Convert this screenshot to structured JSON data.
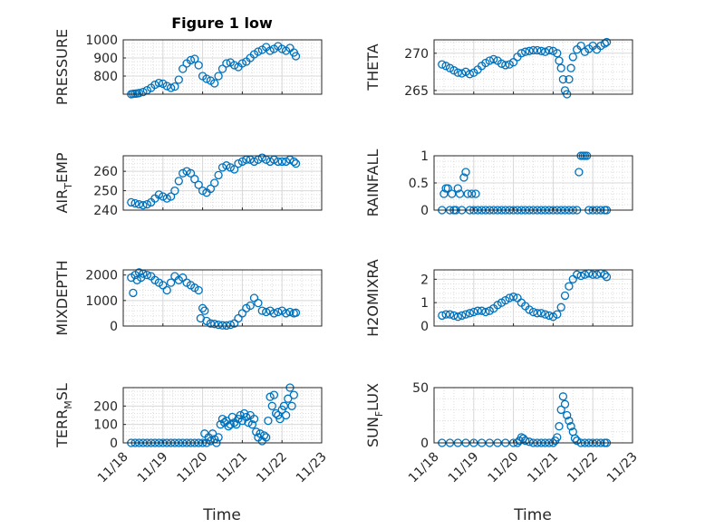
{
  "figure": {
    "title": "Figure 1 low",
    "xlabel_left": "Time",
    "xlabel_right": "Time"
  },
  "style": {
    "marker_color": "#0072BD",
    "axis_color": "#262626",
    "grid_color": "#dddddd"
  },
  "chart_data": [
    {
      "type": "scatter",
      "ylabel": "PRESSURE",
      "column": "left",
      "ylim": [
        700,
        1000
      ],
      "yticks": [
        800,
        900,
        1000
      ],
      "xlim": [
        18,
        23
      ],
      "xticks": [
        18,
        19,
        20,
        21,
        22,
        23
      ],
      "xticklabels": [
        "11/18",
        "11/19",
        "11/20",
        "11/21",
        "11/22",
        "11/23"
      ],
      "x": [
        18.2,
        18.25,
        18.3,
        18.35,
        18.4,
        18.5,
        18.6,
        18.7,
        18.8,
        18.9,
        19.0,
        19.1,
        19.2,
        19.3,
        19.4,
        19.5,
        19.6,
        19.7,
        19.8,
        19.9,
        20.0,
        20.1,
        20.2,
        20.3,
        20.4,
        20.5,
        20.6,
        20.7,
        20.8,
        20.9,
        21.0,
        21.1,
        21.2,
        21.3,
        21.4,
        21.5,
        21.6,
        21.7,
        21.8,
        21.9,
        22.0,
        22.1,
        22.2,
        22.3,
        22.35
      ],
      "y": [
        700,
        702,
        703,
        704,
        706,
        712,
        722,
        735,
        752,
        762,
        758,
        745,
        735,
        742,
        780,
        840,
        870,
        888,
        895,
        860,
        800,
        785,
        775,
        760,
        800,
        840,
        870,
        875,
        860,
        850,
        870,
        880,
        900,
        920,
        935,
        945,
        960,
        940,
        950,
        965,
        950,
        940,
        955,
        930,
        910
      ]
    },
    {
      "type": "scatter",
      "ylabel": "THETA",
      "column": "right",
      "ylim": [
        264.5,
        271.8
      ],
      "yticks": [
        265,
        270
      ],
      "xlim": [
        18,
        23
      ],
      "xticks": [
        18,
        19,
        20,
        21,
        22,
        23
      ],
      "xticklabels": [
        "11/18",
        "11/19",
        "11/20",
        "11/21",
        "11/22",
        "11/23"
      ],
      "x": [
        18.2,
        18.3,
        18.4,
        18.5,
        18.6,
        18.7,
        18.8,
        18.9,
        19.0,
        19.1,
        19.2,
        19.3,
        19.4,
        19.5,
        19.6,
        19.7,
        19.8,
        19.9,
        20.0,
        20.1,
        20.2,
        20.3,
        20.4,
        20.5,
        20.6,
        20.7,
        20.8,
        20.9,
        21.0,
        21.1,
        21.15,
        21.2,
        21.25,
        21.3,
        21.35,
        21.4,
        21.45,
        21.5,
        21.6,
        21.7,
        21.8,
        21.9,
        22.0,
        22.1,
        22.2,
        22.3,
        22.35
      ],
      "y": [
        268.5,
        268.3,
        268.0,
        267.7,
        267.4,
        267.3,
        267.5,
        267.2,
        267.4,
        267.8,
        268.3,
        268.7,
        269.0,
        269.2,
        269.0,
        268.6,
        268.4,
        268.5,
        268.8,
        269.5,
        270.0,
        270.2,
        270.3,
        270.4,
        270.4,
        270.3,
        270.2,
        270.4,
        270.3,
        270.0,
        269.0,
        268.0,
        266.5,
        265.0,
        264.5,
        266.5,
        268.0,
        269.5,
        270.5,
        271.0,
        270.2,
        270.6,
        271.0,
        270.5,
        271.0,
        271.3,
        271.5
      ]
    },
    {
      "type": "scatter",
      "ylabel": "AIR_TEMP",
      "ylabel_main": "AIR",
      "ylabel_sub": "T",
      "ylabel_rest": "EMP",
      "column": "left",
      "ylim": [
        240,
        268
      ],
      "yticks": [
        240,
        250,
        260
      ],
      "xlim": [
        18,
        23
      ],
      "xticks": [
        18,
        19,
        20,
        21,
        22,
        23
      ],
      "xticklabels": [
        "11/18",
        "11/19",
        "11/20",
        "11/21",
        "11/22",
        "11/23"
      ],
      "x": [
        18.2,
        18.3,
        18.4,
        18.5,
        18.6,
        18.7,
        18.8,
        18.9,
        19.0,
        19.1,
        19.2,
        19.3,
        19.4,
        19.5,
        19.6,
        19.7,
        19.8,
        19.9,
        20.0,
        20.1,
        20.2,
        20.3,
        20.4,
        20.5,
        20.6,
        20.7,
        20.8,
        20.9,
        21.0,
        21.1,
        21.2,
        21.3,
        21.4,
        21.5,
        21.6,
        21.7,
        21.8,
        21.9,
        22.0,
        22.1,
        22.2,
        22.3,
        22.35
      ],
      "y": [
        244,
        243.5,
        243,
        242.5,
        243,
        244,
        246,
        248,
        247,
        246,
        247,
        250,
        255,
        259,
        260,
        259,
        256,
        253,
        250,
        249,
        251,
        254,
        258,
        262,
        263,
        262,
        261,
        264,
        265,
        266,
        266,
        265,
        266,
        267,
        266,
        265,
        266,
        265,
        265,
        265,
        266,
        265,
        264
      ]
    },
    {
      "type": "scatter",
      "ylabel": "RAINFALL",
      "column": "right",
      "ylim": [
        0,
        1
      ],
      "yticks": [
        0,
        0.5,
        1
      ],
      "xlim": [
        18,
        23
      ],
      "xticks": [
        18,
        19,
        20,
        21,
        22,
        23
      ],
      "xticklabels": [
        "11/18",
        "11/19",
        "11/20",
        "11/21",
        "11/22",
        "11/23"
      ],
      "x": [
        18.2,
        18.25,
        18.3,
        18.35,
        18.4,
        18.45,
        18.5,
        18.55,
        18.6,
        18.65,
        18.7,
        18.75,
        18.8,
        18.85,
        18.9,
        18.95,
        19.0,
        19.05,
        19.1,
        19.2,
        19.3,
        19.4,
        19.5,
        19.6,
        19.7,
        19.8,
        19.9,
        20.0,
        20.1,
        20.2,
        20.3,
        20.4,
        20.5,
        20.6,
        20.7,
        20.8,
        20.9,
        21.0,
        21.1,
        21.2,
        21.3,
        21.4,
        21.5,
        21.6,
        21.65,
        21.7,
        21.75,
        21.8,
        21.85,
        21.9,
        22.0,
        22.1,
        22.2,
        22.3,
        22.35
      ],
      "y": [
        0.0,
        0.3,
        0.4,
        0.4,
        0.0,
        0.3,
        0.0,
        0.0,
        0.4,
        0.3,
        0.0,
        0.6,
        0.7,
        0.3,
        0.0,
        0.3,
        0.0,
        0.3,
        0.0,
        0.0,
        0.0,
        0.0,
        0.0,
        0.0,
        0.0,
        0.0,
        0.0,
        0.0,
        0.0,
        0.0,
        0.0,
        0.0,
        0.0,
        0.0,
        0.0,
        0.0,
        0.0,
        0.0,
        0.0,
        0.0,
        0.0,
        0.0,
        0.0,
        0.0,
        0.7,
        1.0,
        1.0,
        1.0,
        1.0,
        0.0,
        0.0,
        0.0,
        0.0,
        0.0,
        0.0
      ]
    },
    {
      "type": "scatter",
      "ylabel": "MIXDEPTH",
      "column": "left",
      "ylim": [
        0,
        2200
      ],
      "yticks": [
        0,
        1000,
        2000
      ],
      "xlim": [
        18,
        23
      ],
      "xticks": [
        18,
        19,
        20,
        21,
        22,
        23
      ],
      "xticklabels": [
        "11/18",
        "11/19",
        "11/20",
        "11/21",
        "11/22",
        "11/23"
      ],
      "x": [
        18.2,
        18.25,
        18.3,
        18.35,
        18.4,
        18.45,
        18.5,
        18.6,
        18.7,
        18.8,
        18.9,
        19.0,
        19.1,
        19.2,
        19.3,
        19.4,
        19.5,
        19.6,
        19.7,
        19.8,
        19.9,
        19.95,
        20.0,
        20.05,
        20.1,
        20.2,
        20.3,
        20.4,
        20.5,
        20.6,
        20.7,
        20.8,
        20.9,
        21.0,
        21.1,
        21.2,
        21.3,
        21.4,
        21.5,
        21.6,
        21.7,
        21.8,
        21.9,
        22.0,
        22.1,
        22.2,
        22.3,
        22.35
      ],
      "y": [
        1900,
        1300,
        2000,
        1800,
        2100,
        1900,
        2050,
        2000,
        1950,
        1800,
        1700,
        1600,
        1400,
        1700,
        1950,
        1800,
        1900,
        1700,
        1600,
        1500,
        1400,
        300,
        700,
        600,
        200,
        100,
        80,
        50,
        30,
        20,
        50,
        100,
        300,
        500,
        700,
        800,
        1100,
        900,
        600,
        550,
        600,
        500,
        550,
        600,
        500,
        550,
        500,
        520
      ]
    },
    {
      "type": "scatter",
      "ylabel": "H2OMIXRA",
      "column": "right",
      "ylim": [
        0,
        2.4
      ],
      "yticks": [
        0,
        1,
        2
      ],
      "xlim": [
        18,
        23
      ],
      "xticks": [
        18,
        19,
        20,
        21,
        22,
        23
      ],
      "xticklabels": [
        "11/18",
        "11/19",
        "11/20",
        "11/21",
        "11/22",
        "11/23"
      ],
      "x": [
        18.2,
        18.3,
        18.4,
        18.5,
        18.6,
        18.7,
        18.8,
        18.9,
        19.0,
        19.1,
        19.2,
        19.3,
        19.4,
        19.5,
        19.6,
        19.7,
        19.8,
        19.9,
        20.0,
        20.1,
        20.2,
        20.3,
        20.4,
        20.5,
        20.6,
        20.7,
        20.8,
        20.9,
        21.0,
        21.1,
        21.2,
        21.3,
        21.4,
        21.5,
        21.6,
        21.7,
        21.8,
        21.9,
        22.0,
        22.1,
        22.2,
        22.3,
        22.35
      ],
      "y": [
        0.45,
        0.5,
        0.5,
        0.45,
        0.4,
        0.45,
        0.5,
        0.55,
        0.6,
        0.65,
        0.65,
        0.6,
        0.65,
        0.75,
        0.9,
        1.0,
        1.1,
        1.2,
        1.25,
        1.2,
        1.0,
        0.85,
        0.7,
        0.6,
        0.55,
        0.55,
        0.5,
        0.45,
        0.4,
        0.5,
        0.8,
        1.3,
        1.7,
        2.0,
        2.2,
        2.15,
        2.2,
        2.25,
        2.2,
        2.2,
        2.25,
        2.2,
        2.1
      ]
    },
    {
      "type": "scatter",
      "ylabel": "TERR_MSL",
      "ylabel_main": "TERR",
      "ylabel_sub": "M",
      "ylabel_rest": "SL",
      "column": "left",
      "ylim": [
        0,
        300
      ],
      "yticks": [
        0,
        100,
        200
      ],
      "xlim": [
        18,
        23
      ],
      "xticks": [
        18,
        19,
        20,
        21,
        22,
        23
      ],
      "xticklabels": [
        "11/18",
        "11/19",
        "11/20",
        "11/21",
        "11/22",
        "11/23"
      ],
      "x": [
        18.2,
        18.3,
        18.4,
        18.5,
        18.6,
        18.7,
        18.8,
        18.9,
        19.0,
        19.1,
        19.2,
        19.3,
        19.4,
        19.5,
        19.6,
        19.7,
        19.8,
        19.9,
        20.0,
        20.05,
        20.1,
        20.15,
        20.2,
        20.25,
        20.3,
        20.35,
        20.4,
        20.45,
        20.5,
        20.55,
        20.6,
        20.65,
        20.7,
        20.75,
        20.8,
        20.85,
        20.9,
        20.95,
        21.0,
        21.05,
        21.1,
        21.15,
        21.2,
        21.25,
        21.3,
        21.35,
        21.4,
        21.45,
        21.5,
        21.55,
        21.6,
        21.65,
        21.7,
        21.75,
        21.8,
        21.85,
        21.9,
        21.95,
        22.0,
        22.05,
        22.1,
        22.15,
        22.2,
        22.25,
        22.3
      ],
      "y": [
        0,
        0,
        0,
        0,
        0,
        0,
        0,
        0,
        0,
        0,
        0,
        0,
        0,
        0,
        0,
        0,
        0,
        0,
        0,
        50,
        0,
        30,
        10,
        50,
        20,
        0,
        30,
        100,
        130,
        110,
        120,
        90,
        100,
        140,
        110,
        100,
        130,
        150,
        120,
        160,
        140,
        110,
        150,
        100,
        130,
        60,
        30,
        50,
        10,
        40,
        30,
        120,
        250,
        200,
        260,
        160,
        150,
        130,
        180,
        200,
        150,
        240,
        300,
        200,
        260
      ]
    },
    {
      "type": "scatter",
      "ylabel": "SUN_FLUX",
      "ylabel_main": "SUN",
      "ylabel_sub": "F",
      "ylabel_rest": "LUX",
      "column": "right",
      "ylim": [
        0,
        50
      ],
      "yticks": [
        0,
        50
      ],
      "xlim": [
        18,
        23
      ],
      "xticks": [
        18,
        19,
        20,
        21,
        22,
        23
      ],
      "xticklabels": [
        "11/18",
        "11/19",
        "11/20",
        "11/21",
        "11/22",
        "11/23"
      ],
      "x": [
        18.2,
        18.4,
        18.6,
        18.8,
        19.0,
        19.2,
        19.4,
        19.6,
        19.8,
        20.0,
        20.1,
        20.15,
        20.2,
        20.25,
        20.3,
        20.4,
        20.5,
        20.6,
        20.7,
        20.8,
        20.9,
        21.0,
        21.05,
        21.1,
        21.15,
        21.2,
        21.25,
        21.3,
        21.35,
        21.4,
        21.45,
        21.5,
        21.55,
        21.6,
        21.7,
        21.8,
        21.9,
        22.0,
        22.1,
        22.2,
        22.3,
        22.35
      ],
      "y": [
        0,
        0,
        0,
        0,
        0,
        0,
        0,
        0,
        0,
        0,
        0,
        2,
        5,
        4,
        2,
        1,
        0,
        0,
        0,
        0,
        0,
        0,
        2,
        5,
        15,
        30,
        42,
        35,
        25,
        20,
        15,
        10,
        4,
        2,
        0,
        0,
        0,
        0,
        0,
        0,
        0,
        0
      ]
    }
  ]
}
